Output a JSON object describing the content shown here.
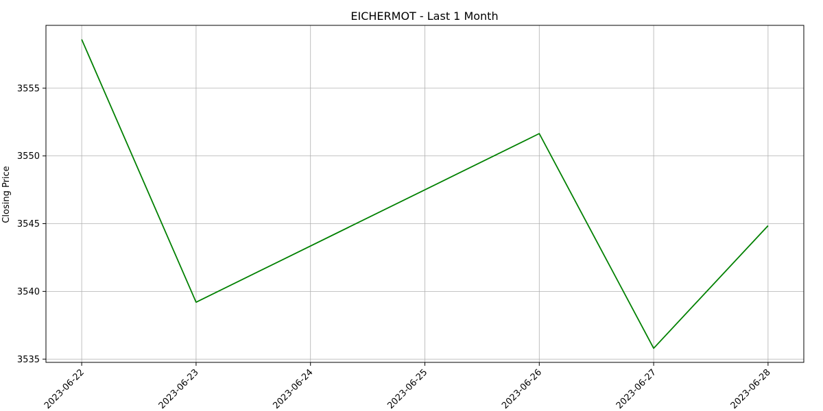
{
  "chart_data": {
    "type": "line",
    "title": "EICHERMOT - Last 1 Month",
    "xlabel": "",
    "ylabel": "Closing Price",
    "x": [
      "2023-06-22",
      "2023-06-23",
      "2023-06-26",
      "2023-06-27",
      "2023-06-28"
    ],
    "series": [
      {
        "values": [
          3558.6,
          3539.2,
          3551.65,
          3535.8,
          3544.85
        ],
        "color": "#008000"
      }
    ],
    "x_ticks": [
      "2023-06-22",
      "2023-06-23",
      "2023-06-24",
      "2023-06-25",
      "2023-06-26",
      "2023-06-27",
      "2023-06-28"
    ],
    "y_ticks": [
      3535,
      3540,
      3545,
      3550,
      3555
    ],
    "xlim": [
      "2023-06-21T16:30",
      "2023-06-28T07:30"
    ],
    "ylim": [
      3534.76,
      3559.64
    ],
    "grid": true,
    "legend": "none"
  }
}
